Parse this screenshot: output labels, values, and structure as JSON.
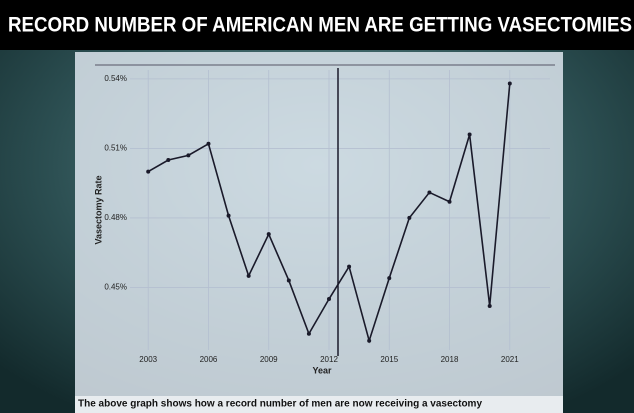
{
  "chart_data": {
    "type": "line",
    "title": "RECORD NUMBER OF AMERICAN MEN ARE GETTING VASECTOMIES",
    "caption": "The above graph shows how a record number of men are now receiving a vasectomy",
    "x_label": "Year",
    "y_label": "Vasectomy Rate",
    "x": [
      2003,
      2004,
      2005,
      2006,
      2007,
      2008,
      2009,
      2010,
      2011,
      2012,
      2013,
      2014,
      2015,
      2016,
      2017,
      2018,
      2019,
      2020,
      2021
    ],
    "values": [
      0.5,
      0.505,
      0.507,
      0.512,
      0.481,
      0.455,
      0.473,
      0.453,
      0.43,
      0.445,
      0.459,
      0.427,
      0.454,
      0.48,
      0.491,
      0.487,
      0.516,
      0.442,
      0.538
    ],
    "color": "#1a1a2a",
    "xlim": [
      2000.6,
      2023.5
    ],
    "xticks": [
      2003,
      2006,
      2009,
      2012,
      2015,
      2018,
      2021
    ],
    "ylim": [
      0.423,
      0.546
    ],
    "yticks": [
      {
        "value": 0.45,
        "label": "0.45%"
      },
      {
        "value": 0.48,
        "label": "0.48%"
      },
      {
        "value": 0.51,
        "label": "0.51%"
      },
      {
        "value": 0.54,
        "label": "0.54%"
      }
    ],
    "grid": true
  }
}
